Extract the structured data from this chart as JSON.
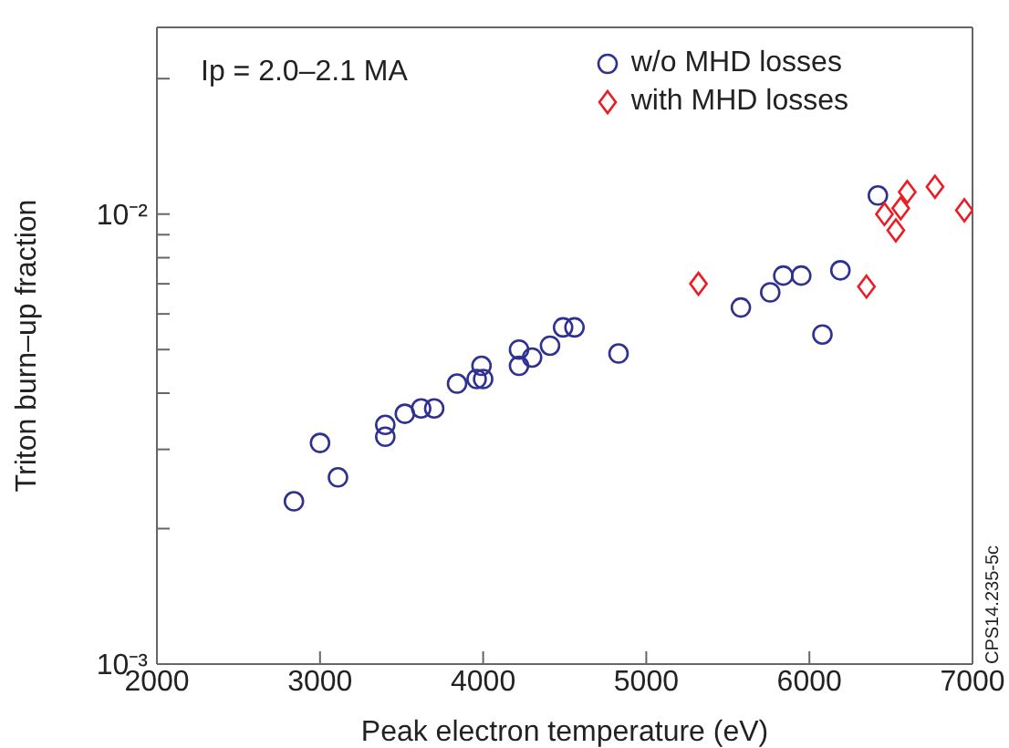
{
  "chart_data": {
    "type": "scatter",
    "xlabel": "Peak electron temperature (eV)",
    "ylabel": "Triton burn–up fraction",
    "annotations": [
      "Ip = 2.0–2.1 MA",
      "CPS14.235-5c"
    ],
    "log": "y",
    "grid": false,
    "legend": "top right",
    "xlim": [
      2000,
      7000
    ],
    "xticks": [
      2000,
      3000,
      4000,
      5000,
      6000,
      7000
    ],
    "ylim": [
      0.001,
      0.026
    ],
    "yticks": [
      {
        "value": 0.001,
        "label": "10⁻³"
      },
      {
        "value": 0.002,
        "label": null
      },
      {
        "value": 0.003,
        "label": null
      },
      {
        "value": 0.004,
        "label": null
      },
      {
        "value": 0.005,
        "label": null
      },
      {
        "value": 0.006,
        "label": null
      },
      {
        "value": 0.007,
        "label": null
      },
      {
        "value": 0.008,
        "label": null
      },
      {
        "value": 0.009,
        "label": null
      },
      {
        "value": 0.01,
        "label": "10⁻²"
      },
      {
        "value": 0.02,
        "label": null
      }
    ],
    "series": [
      {
        "name": "w/o MHD losses",
        "color": "#2e3192",
        "marker": "circle",
        "x": [
          2840,
          3000,
          3110,
          3400,
          3400,
          3520,
          3620,
          3700,
          3840,
          3960,
          4000,
          3990,
          4220,
          4220,
          4300,
          4410,
          4490,
          4560,
          4830,
          5580,
          5760,
          5840,
          5950,
          6080,
          6190,
          6420
        ],
        "values": [
          0.0023,
          0.0031,
          0.0026,
          0.0034,
          0.0032,
          0.0036,
          0.0037,
          0.0037,
          0.0042,
          0.0043,
          0.0043,
          0.0046,
          0.005,
          0.0046,
          0.0048,
          0.0051,
          0.0056,
          0.0056,
          0.0049,
          0.0062,
          0.0067,
          0.0073,
          0.0073,
          0.0054,
          0.0075,
          0.011
        ]
      },
      {
        "name": "with MHD losses",
        "color": "#ed1c24",
        "marker": "diamond",
        "x": [
          5320,
          6350,
          6460,
          6530,
          6560,
          6600,
          6770,
          6950
        ],
        "values": [
          0.007,
          0.0069,
          0.01,
          0.0092,
          0.0103,
          0.0112,
          0.0115,
          0.0102
        ]
      }
    ]
  }
}
